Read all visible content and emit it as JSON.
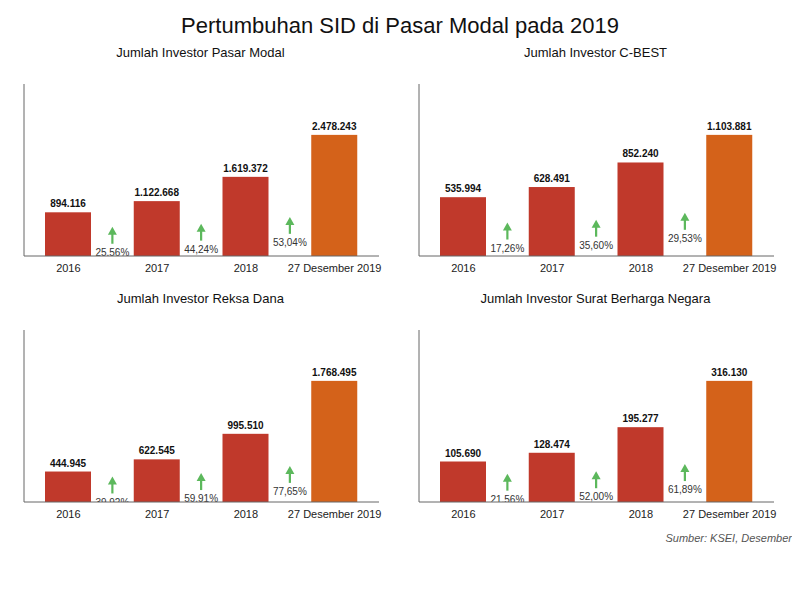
{
  "title": "Pertumbuhan SID di Pasar Modal pada 2019",
  "annotations": [
    "Sumber: KSEI, Desember"
  ],
  "chart_data": [
    {
      "type": "bar",
      "title": "Jumlah Investor Pasar Modal",
      "categories": [
        "2016",
        "2017",
        "2018",
        "27 Desember 2019"
      ],
      "values": [
        894116,
        1122668,
        1619372,
        2478243
      ],
      "value_labels": [
        "894.116",
        "1.122.668",
        "1.619.372",
        "2.478.243"
      ],
      "colors": [
        "#c0392b",
        "#c0392b",
        "#c0392b",
        "#d4621a"
      ],
      "ylim": [
        0,
        3519105.06
      ],
      "tick_labels": "x",
      "data_labels": true,
      "annotations": [
        {
          "text": "25,56%",
          "color": "#5cb85c"
        },
        {
          "text": "44,24%",
          "color": "#5cb85c"
        },
        {
          "text": "53,04%",
          "color": "#5cb85c"
        }
      ]
    },
    {
      "type": "bar",
      "title": "Jumlah Investor C-BEST",
      "categories": [
        "2016",
        "2017",
        "2018",
        "27 Desember 2019"
      ],
      "values": [
        535994,
        628491,
        852240,
        1103881
      ],
      "value_labels": [
        "535.994",
        "628.491",
        "852.240",
        "1.103.881"
      ],
      "colors": [
        "#c0392b",
        "#c0392b",
        "#c0392b",
        "#d4621a"
      ],
      "ylim": [
        0,
        1567511.02
      ],
      "tick_labels": "x",
      "data_labels": true,
      "annotations": [
        {
          "text": "17,26%",
          "color": "#5cb85c"
        },
        {
          "text": "35,60%",
          "color": "#5cb85c"
        },
        {
          "text": "29,53%",
          "color": "#5cb85c"
        }
      ]
    },
    {
      "type": "bar",
      "title": "Jumlah Investor Reksa Dana",
      "categories": [
        "2016",
        "2017",
        "2018",
        "27 Desember 2019"
      ],
      "values": [
        444945,
        622545,
        995510,
        1768495
      ],
      "value_labels": [
        "444.945",
        "622.545",
        "995.510",
        "1.768.495"
      ],
      "colors": [
        "#c0392b",
        "#c0392b",
        "#c0392b",
        "#d4621a"
      ],
      "ylim": [
        0,
        2511262.9
      ],
      "tick_labels": "x",
      "data_labels": true,
      "annotations": [
        {
          "text": "39,92%",
          "color": "#5cb85c"
        },
        {
          "text": "59,91%",
          "color": "#5cb85c"
        },
        {
          "text": "77,65%",
          "color": "#5cb85c"
        }
      ]
    },
    {
      "type": "bar",
      "title": "Jumlah Investor Surat Berharga Negara",
      "categories": [
        "2016",
        "2017",
        "2018",
        "27 Desember 2019"
      ],
      "values": [
        105690,
        128474,
        195277,
        316130
      ],
      "value_labels": [
        "105.690",
        "128.474",
        "195.277",
        "316.130"
      ],
      "colors": [
        "#c0392b",
        "#c0392b",
        "#c0392b",
        "#d4621a"
      ],
      "ylim": [
        0,
        448904.6
      ],
      "tick_labels": "x",
      "data_labels": true,
      "annotations": [
        {
          "text": "21,56%",
          "color": "#5cb85c"
        },
        {
          "text": "52,00%",
          "color": "#5cb85c"
        },
        {
          "text": "61,89%",
          "color": "#5cb85c"
        }
      ]
    }
  ]
}
